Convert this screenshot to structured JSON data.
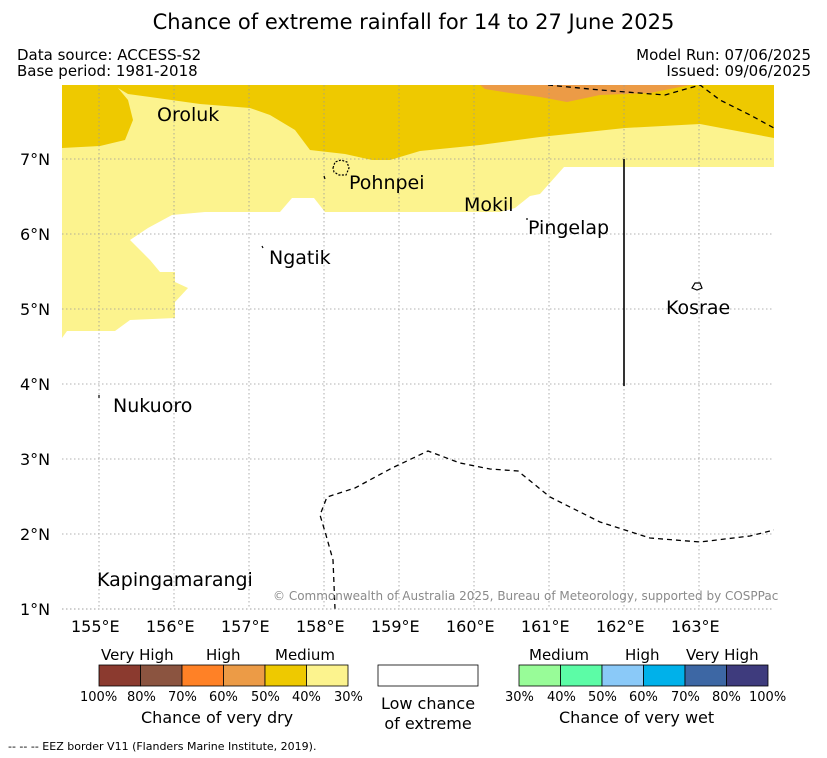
{
  "title": "Chance of extreme rainfall for 14 to 27 June 2025",
  "data_source": "Data source: ACCESS-S2",
  "base_period": "Base period: 1981-2018",
  "model_run": "Model Run: 07/06/2025",
  "issued": "Issued: 09/06/2025",
  "copyright": "© Commonwealth of Australia 2025, Bureau of Meteorology, supported by COSPPac",
  "places": {
    "oroluk": "Oroluk",
    "pohnpei": "Pohnpei",
    "mokil": "Mokil",
    "pingelap": "Pingelap",
    "ngatik": "Ngatik",
    "kosrae": "Kosrae",
    "nukuoro": "Nukuoro",
    "kapingamarangi": "Kapingamarangi"
  },
  "lat_ticks": [
    "7°N",
    "6°N",
    "5°N",
    "4°N",
    "3°N",
    "2°N",
    "1°N"
  ],
  "lon_ticks": [
    "155°E",
    "156°E",
    "157°E",
    "158°E",
    "159°E",
    "160°E",
    "161°E",
    "162°E",
    "163°E"
  ],
  "legend": {
    "dry": {
      "title": "Chance of very dry",
      "groups": [
        "Very High",
        "High",
        "Medium"
      ],
      "pcts": [
        "100%",
        "80%",
        "70%",
        "60%",
        "50%",
        "40%",
        "30%"
      ],
      "colors": [
        "#8b3a2f",
        "#8b5440",
        "#ff8126",
        "#ec9b46",
        "#eec900",
        "#fcf38e"
      ]
    },
    "low": {
      "line1": "Low chance",
      "line2": "of extreme"
    },
    "wet": {
      "title": "Chance of very wet",
      "groups": [
        "Medium",
        "High",
        "Very High"
      ],
      "pcts": [
        "30%",
        "40%",
        "50%",
        "60%",
        "70%",
        "80%",
        "100%"
      ],
      "colors": [
        "#98fc98",
        "#5cfca6",
        "#8ac9f8",
        "#00b1ea",
        "#3d67a4",
        "#3e3b7d"
      ]
    }
  },
  "footnote": "-- -- -- EEZ border V11 (Flanders Marine Institute, 2019)."
}
